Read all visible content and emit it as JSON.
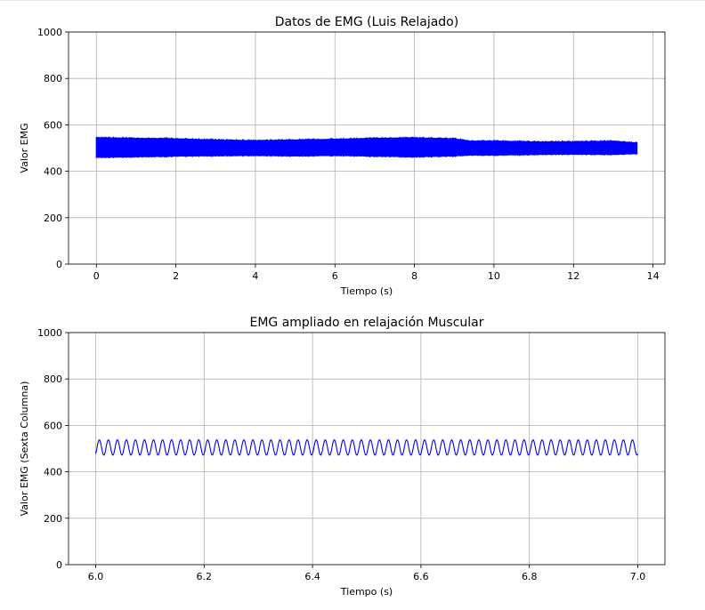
{
  "chart_data": [
    {
      "type": "line",
      "title": "Datos de EMG (Luis Relajado)",
      "xlabel": "Tiempo (s)",
      "ylabel": "Valor EMG",
      "xlim": [
        -0.7,
        14.3
      ],
      "ylim": [
        0,
        1000
      ],
      "xticks": [
        0,
        2,
        4,
        6,
        8,
        10,
        12,
        14
      ],
      "xtick_labels": [
        "0",
        "2",
        "4",
        "6",
        "8",
        "10",
        "12",
        "14"
      ],
      "yticks": [
        0,
        200,
        400,
        600,
        800,
        1000
      ],
      "ytick_labels": [
        "0",
        "200",
        "400",
        "600",
        "800",
        "1000"
      ],
      "grid": true,
      "series": [
        {
          "color": "#0000ff",
          "envelope": {
            "x": [
              0.0,
              1.0,
              2.0,
              3.0,
              4.0,
              5.0,
              6.0,
              7.0,
              8.0,
              9.0,
              9.4,
              10.0,
              11.0,
              12.0,
              13.0,
              13.6
            ],
            "upper": [
              545,
              542,
              540,
              535,
              532,
              535,
              538,
              542,
              544,
              540,
              530,
              530,
              527,
              527,
              530,
              522
            ],
            "lower": [
              460,
              462,
              465,
              467,
              468,
              466,
              468,
              465,
              462,
              466,
              470,
              470,
              472,
              474,
              472,
              476
            ]
          }
        }
      ]
    },
    {
      "type": "line",
      "title": "EMG ampliado en relajación Muscular",
      "xlabel": "Tiempo (s)",
      "ylabel": "Valor EMG (Sexta Columna)",
      "xlim": [
        5.95,
        7.05
      ],
      "ylim": [
        0,
        1000
      ],
      "xticks": [
        6.0,
        6.2,
        6.4,
        6.6,
        6.8,
        7.0
      ],
      "xtick_labels": [
        "6.0",
        "6.2",
        "6.4",
        "6.6",
        "6.8",
        "7.0"
      ],
      "yticks": [
        0,
        200,
        400,
        600,
        800,
        1000
      ],
      "ytick_labels": [
        "0",
        "200",
        "400",
        "600",
        "800",
        "1000"
      ],
      "grid": true,
      "series": [
        {
          "color": "#0000ff",
          "signal": {
            "t_start": 6.0,
            "t_end": 7.0,
            "mean": 505,
            "amplitude": 33,
            "cycles": 60
          }
        }
      ]
    }
  ]
}
